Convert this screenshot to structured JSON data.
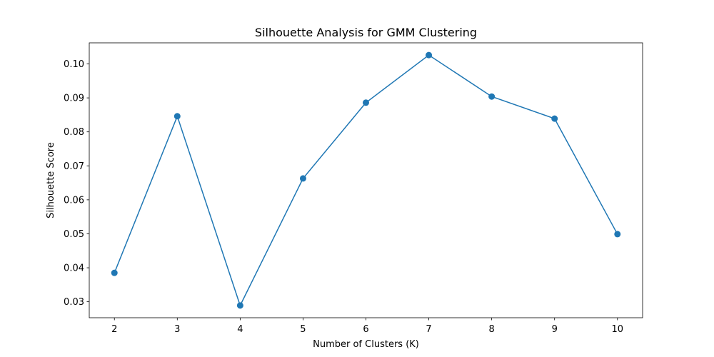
{
  "chart_data": {
    "type": "line",
    "title": "Silhouette Analysis for GMM Clustering",
    "xlabel": "Number of Clusters (K)",
    "ylabel": "Silhouette Score",
    "x": [
      2,
      3,
      4,
      5,
      6,
      7,
      8,
      9,
      10
    ],
    "series": [
      {
        "values": [
          0.0385,
          0.0846,
          0.0289,
          0.0663,
          0.0886,
          0.1026,
          0.0904,
          0.0839,
          0.0499
        ],
        "color": "#1f77b4",
        "marker": "circle"
      }
    ],
    "xticks": [
      "2",
      "3",
      "4",
      "5",
      "6",
      "7",
      "8",
      "9",
      "10"
    ],
    "yticks": [
      "0.03",
      "0.04",
      "0.05",
      "0.06",
      "0.07",
      "0.08",
      "0.09",
      "0.10"
    ],
    "xlim": [
      1.6,
      10.4
    ],
    "ylim": [
      0.0253,
      0.1062
    ],
    "grid": false,
    "legend": "none"
  }
}
